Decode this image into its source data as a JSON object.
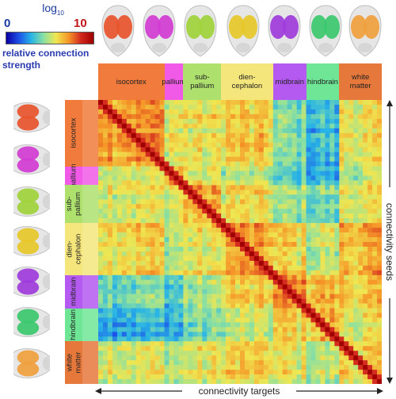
{
  "colorbar": {
    "title_base": "log",
    "title_sub": "10",
    "min_label": "0",
    "max_label": "10",
    "label": "relative connection strength",
    "colors": [
      "#0a00a0",
      "#1e50e6",
      "#28b4e6",
      "#8be0a0",
      "#f0e650",
      "#f59628",
      "#d2281e",
      "#a00000"
    ]
  },
  "regions": [
    {
      "id": "isocortex",
      "label": "isocortex",
      "color": "#f07b3c",
      "brain_color": "#e8552c"
    },
    {
      "id": "pallium",
      "label": "pallium",
      "color": "#f05ae6",
      "brain_color": "#d23cd2"
    },
    {
      "id": "subpallium",
      "label": "sub-\npallium",
      "color": "#aee06e",
      "brain_color": "#a0d23c"
    },
    {
      "id": "diencephalon",
      "label": "dien-\ncephalon",
      "color": "#f5e67c",
      "brain_color": "#e6c828"
    },
    {
      "id": "midbrain",
      "label": "midbrain",
      "color": "#b45af0",
      "brain_color": "#a03cdc"
    },
    {
      "id": "hindbrain",
      "label": "hindbrain",
      "color": "#6ee696",
      "brain_color": "#3cc86e"
    },
    {
      "id": "white_matter",
      "label": "white\nmatter",
      "color": "#e6783c",
      "brain_color": "#f0a03c"
    }
  ],
  "axes": {
    "x_label": "connectivity targets",
    "y_label": "connectivity seeds"
  },
  "chart_data": {
    "type": "heatmap",
    "title": "",
    "xlabel": "connectivity targets",
    "ylabel": "connectivity seeds",
    "color_scale": "log10 relative connection strength",
    "zlim": [
      0,
      10
    ],
    "grid_size": 60,
    "categories": [
      "isocortex",
      "pallium",
      "sub-pallium",
      "dien-cephalon",
      "midbrain",
      "hindbrain",
      "white matter"
    ],
    "region_bounds": [
      0,
      14,
      18,
      26,
      37,
      44,
      51,
      60
    ],
    "block_values": [
      [
        7.0,
        5.5,
        5.5,
        6.0,
        4.0,
        3.0,
        5.5
      ],
      [
        5.5,
        6.8,
        5.5,
        5.0,
        3.5,
        3.0,
        5.0
      ],
      [
        5.5,
        5.5,
        6.5,
        5.8,
        4.5,
        4.0,
        5.5
      ],
      [
        6.0,
        5.0,
        5.5,
        6.8,
        6.0,
        5.0,
        6.5
      ],
      [
        4.0,
        3.5,
        4.5,
        6.0,
        7.0,
        6.5,
        6.0
      ],
      [
        3.0,
        3.0,
        4.0,
        5.0,
        6.0,
        6.5,
        5.5
      ],
      [
        5.5,
        5.0,
        5.5,
        6.0,
        5.5,
        5.0,
        6.0
      ]
    ],
    "diagonal_value": 10
  }
}
